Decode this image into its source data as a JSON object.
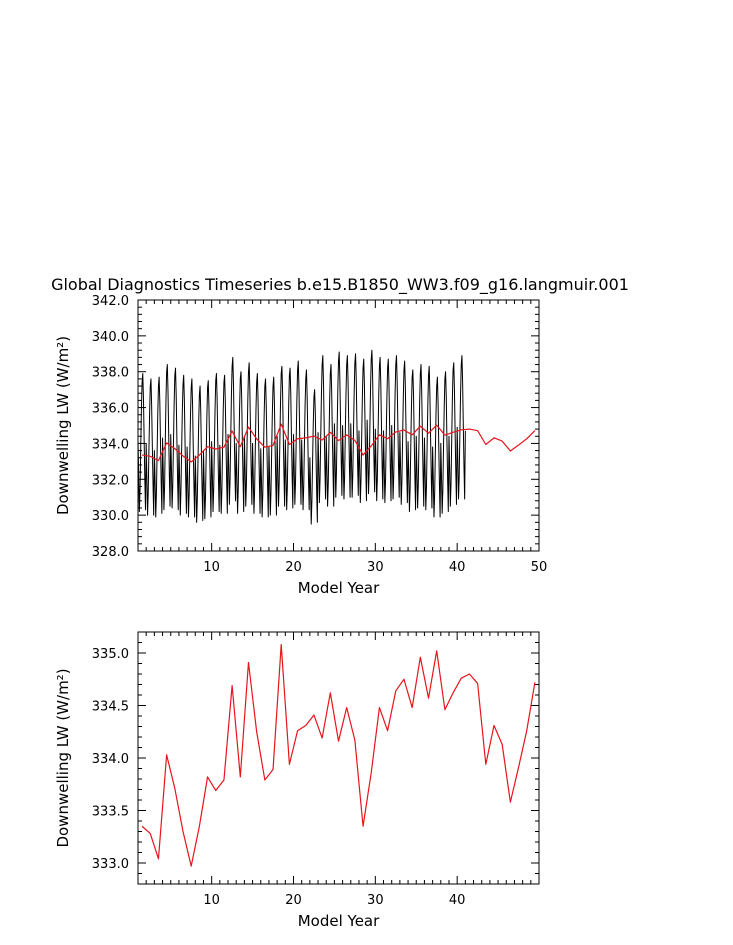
{
  "title": "Global Diagnostics Timeseries b.e15.B1850_WW3.f09_g16.langmuir.001",
  "chart_data": [
    {
      "type": "line",
      "xlabel": "Model Year",
      "ylabel": "Downwelling LW (W/m²)",
      "xlim": [
        1,
        50
      ],
      "ylim": [
        328,
        342
      ],
      "xticks": [
        10,
        20,
        30,
        40,
        50
      ],
      "yticks": [
        "328.0",
        "330.0",
        "332.0",
        "334.0",
        "336.0",
        "338.0",
        "340.0",
        "342.0"
      ],
      "grid": false,
      "series": [
        {
          "color": "#000000",
          "x_start": 1.0,
          "x_step": 0.0833333,
          "values": [
            334.1,
            332.4,
            330.2,
            331.4,
            333.8,
            335.9,
            337.4,
            337.9,
            336.5,
            334.2,
            332.0,
            330.3,
            334.0,
            332.1,
            330.0,
            331.3,
            333.6,
            335.6,
            337.2,
            337.6,
            336.1,
            333.9,
            331.8,
            330.0,
            333.6,
            331.9,
            329.9,
            331.2,
            333.5,
            335.7,
            337.2,
            337.7,
            336.3,
            334.0,
            331.8,
            330.1,
            334.3,
            332.5,
            330.3,
            331.6,
            334.1,
            336.4,
            338.0,
            338.4,
            336.9,
            334.5,
            332.2,
            330.5,
            334.5,
            332.6,
            330.4,
            331.7,
            334.0,
            336.2,
            337.8,
            338.2,
            336.7,
            334.3,
            332.1,
            330.3,
            333.9,
            332.1,
            330.0,
            331.4,
            333.7,
            335.8,
            337.3,
            337.8,
            336.4,
            334.0,
            331.9,
            330.1,
            333.8,
            332.0,
            329.9,
            331.2,
            333.5,
            335.6,
            337.1,
            337.6,
            336.2,
            333.8,
            331.7,
            329.9,
            333.3,
            331.6,
            329.6,
            330.9,
            333.1,
            335.2,
            336.7,
            337.2,
            335.8,
            333.5,
            331.4,
            329.7,
            333.6,
            331.8,
            329.8,
            331.1,
            333.4,
            335.5,
            337.1,
            337.5,
            336.1,
            333.8,
            331.6,
            329.9,
            334.1,
            332.3,
            330.2,
            331.5,
            333.8,
            335.9,
            337.5,
            337.9,
            336.5,
            334.2,
            332.0,
            330.2,
            333.9,
            332.1,
            330.1,
            331.4,
            333.7,
            335.9,
            337.4,
            337.8,
            336.4,
            334.1,
            331.9,
            330.1,
            334.5,
            332.7,
            330.6,
            332.0,
            334.4,
            336.7,
            338.3,
            338.8,
            337.3,
            334.9,
            332.6,
            330.8,
            334.0,
            332.2,
            330.1,
            331.5,
            333.8,
            336.0,
            337.6,
            338.0,
            336.6,
            334.2,
            332.0,
            330.2,
            334.4,
            332.6,
            330.5,
            331.8,
            334.2,
            336.4,
            338.0,
            338.5,
            337.0,
            334.6,
            332.4,
            330.6,
            334.0,
            332.2,
            330.1,
            331.4,
            333.7,
            335.9,
            337.4,
            337.9,
            336.5,
            334.1,
            331.9,
            330.1,
            333.7,
            332.0,
            329.9,
            331.2,
            333.5,
            335.6,
            337.2,
            337.6,
            336.2,
            333.9,
            331.7,
            329.9,
            333.8,
            332.0,
            330.0,
            331.3,
            333.6,
            335.7,
            337.2,
            337.7,
            336.3,
            333.9,
            331.8,
            330.0,
            334.4,
            332.6,
            330.5,
            331.8,
            334.1,
            336.3,
            337.9,
            338.3,
            336.9,
            334.5,
            332.3,
            330.5,
            334.2,
            332.4,
            330.3,
            331.6,
            334.0,
            336.2,
            337.8,
            338.2,
            336.8,
            334.4,
            332.2,
            330.4,
            334.5,
            332.7,
            330.6,
            331.9,
            334.3,
            336.5,
            338.1,
            338.6,
            337.1,
            334.7,
            332.4,
            330.6,
            334.2,
            332.4,
            330.3,
            331.6,
            333.9,
            336.1,
            337.6,
            338.1,
            336.7,
            334.3,
            332.1,
            330.3,
            333.2,
            331.5,
            329.5,
            330.8,
            333.0,
            335.1,
            336.6,
            337.0,
            335.7,
            333.4,
            331.3,
            329.6,
            334.6,
            332.8,
            330.7,
            332.1,
            334.5,
            336.8,
            338.4,
            338.9,
            337.4,
            335.0,
            332.7,
            330.9,
            334.4,
            332.6,
            330.5,
            331.8,
            334.1,
            336.3,
            337.9,
            338.4,
            336.9,
            334.5,
            332.3,
            330.5,
            335.1,
            333.2,
            331.0,
            332.4,
            334.8,
            337.0,
            338.6,
            339.1,
            337.6,
            335.2,
            333.0,
            331.1,
            335.0,
            333.1,
            330.9,
            332.2,
            334.6,
            336.8,
            338.4,
            338.9,
            337.5,
            335.1,
            332.8,
            331.0,
            335.1,
            333.2,
            331.0,
            332.3,
            334.7,
            336.9,
            338.5,
            339.0,
            337.6,
            335.2,
            332.9,
            331.1,
            334.7,
            332.8,
            330.7,
            332.0,
            334.4,
            336.6,
            338.2,
            338.7,
            337.3,
            334.9,
            332.6,
            330.8,
            335.3,
            333.4,
            331.2,
            332.5,
            334.9,
            337.1,
            338.7,
            339.2,
            337.8,
            335.4,
            333.1,
            331.3,
            334.8,
            332.9,
            330.8,
            332.1,
            334.5,
            336.7,
            338.3,
            338.8,
            337.4,
            335.0,
            332.7,
            330.9,
            334.7,
            332.8,
            330.7,
            332.0,
            334.4,
            336.6,
            338.2,
            338.7,
            337.3,
            334.9,
            332.6,
            330.8,
            335.0,
            333.1,
            330.9,
            332.2,
            334.6,
            336.8,
            338.4,
            338.9,
            337.5,
            335.1,
            332.8,
            331.0,
            334.6,
            332.7,
            330.6,
            331.9,
            334.3,
            336.5,
            338.1,
            338.6,
            337.2,
            334.8,
            332.5,
            330.7,
            334.1,
            332.3,
            330.2,
            331.5,
            333.9,
            336.1,
            337.7,
            338.1,
            336.7,
            334.3,
            332.1,
            330.3,
            334.4,
            332.5,
            330.4,
            331.7,
            334.1,
            336.3,
            337.9,
            338.4,
            336.9,
            334.5,
            332.3,
            330.5,
            334.3,
            332.4,
            330.3,
            331.6,
            334.0,
            336.2,
            337.8,
            338.3,
            336.8,
            334.4,
            332.2,
            330.4,
            333.8,
            332.0,
            329.9,
            331.2,
            333.5,
            335.7,
            337.2,
            337.7,
            336.3,
            333.9,
            331.7,
            329.9,
            334.0,
            332.2,
            330.1,
            331.4,
            333.8,
            336.0,
            337.6,
            338.0,
            336.6,
            334.2,
            332.0,
            330.2,
            334.4,
            332.6,
            330.5,
            331.8,
            334.2,
            336.5,
            338.1,
            338.5,
            337.0,
            334.6,
            332.4,
            330.6,
            334.9,
            333.0,
            330.9,
            332.2,
            334.6,
            336.8,
            338.4,
            338.9,
            337.4,
            335.0,
            332.7,
            330.9,
            334.7
          ]
        },
        {
          "color": "#e8141c",
          "x_start": 1.5,
          "x_step": 1,
          "values": [
            333.35,
            333.28,
            333.04,
            334.03,
            333.71,
            333.3,
            332.97,
            333.35,
            333.82,
            333.69,
            333.79,
            334.69,
            333.82,
            334.91,
            334.25,
            333.79,
            333.89,
            335.08,
            333.94,
            334.26,
            334.31,
            334.41,
            334.19,
            334.62,
            334.16,
            334.48,
            334.17,
            333.35,
            333.86,
            334.48,
            334.26,
            334.64,
            334.75,
            334.48,
            334.96,
            334.57,
            335.02,
            334.46,
            334.62,
            334.76,
            334.8,
            334.71,
            333.94,
            334.31,
            334.13,
            333.58,
            333.91,
            334.26,
            334.72
          ]
        }
      ]
    },
    {
      "type": "line",
      "xlabel": "Model Year",
      "ylabel": "Downwelling LW (W/m²)",
      "xlim": [
        1,
        50
      ],
      "ylim": [
        332.8,
        335.2
      ],
      "xticks": [
        10,
        20,
        30,
        40
      ],
      "yticks": [
        "333.0",
        "333.5",
        "334.0",
        "334.5",
        "335.0"
      ],
      "grid": false,
      "series": [
        {
          "color": "#e8141c",
          "x_start": 1.5,
          "x_step": 1,
          "values": [
            333.35,
            333.28,
            333.04,
            334.03,
            333.71,
            333.3,
            332.97,
            333.35,
            333.82,
            333.69,
            333.79,
            334.69,
            333.82,
            334.91,
            334.25,
            333.79,
            333.89,
            335.08,
            333.94,
            334.26,
            334.31,
            334.41,
            334.19,
            334.62,
            334.16,
            334.48,
            334.17,
            333.35,
            333.86,
            334.48,
            334.26,
            334.64,
            334.75,
            334.48,
            334.96,
            334.57,
            335.02,
            334.46,
            334.62,
            334.76,
            334.8,
            334.71,
            333.94,
            334.31,
            334.13,
            333.58,
            333.91,
            334.26,
            334.72
          ]
        }
      ]
    }
  ]
}
